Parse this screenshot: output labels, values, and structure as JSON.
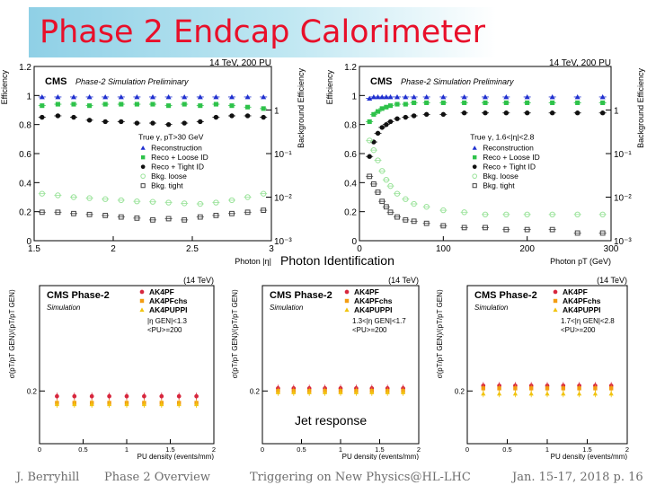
{
  "slide": {
    "title": "Phase 2 Endcap Calorimeter",
    "photon_caption": "Photon Identification",
    "jet_caption": "Jet response",
    "footer": {
      "author": "J. Berryhill",
      "talk": "Phase 2 Overview",
      "conference": "Triggering on New Physics@HL-LHC",
      "date_page": "Jan. 15-17, 2018 p. 16"
    }
  },
  "colors": {
    "title": "#e8102a",
    "reco": "#1f2fcf",
    "loose": "#2ec24a",
    "tight": "#111111",
    "bkg_loose": "#9be39b",
    "bkg_tight": "#444444",
    "ak4pf": "#d7263d",
    "ak4pfchs": "#f39c12",
    "ak4puppi": "#f1c40f"
  },
  "chart_data": [
    {
      "type": "scatter",
      "header_left": "CMS",
      "header_right": "Phase-2 Simulation Preliminary",
      "energy": "14 TeV, 200 PU",
      "xlabel": "Photon |η|",
      "ylabel": "Efficiency",
      "ylabel_right": "Background Efficiency",
      "xlim": [
        1.5,
        3.0
      ],
      "xticks": [
        "1.5",
        "2",
        "2.5",
        "3"
      ],
      "ylim": [
        0,
        1.2
      ],
      "yticks": [
        "0",
        "0.2",
        "0.4",
        "0.6",
        "0.8",
        "1",
        "1.2"
      ],
      "y2_log": true,
      "y2lim": [
        0.001,
        10
      ],
      "y2ticks": [
        "10⁻³",
        "10⁻²",
        "10⁻¹",
        "1"
      ],
      "selection": "True γ, pT>30 GeV",
      "legend_position": "center-right",
      "x": [
        1.55,
        1.65,
        1.75,
        1.85,
        1.95,
        2.05,
        2.15,
        2.25,
        2.35,
        2.45,
        2.55,
        2.65,
        2.75,
        2.85,
        2.95
      ],
      "series": [
        {
          "name": "Reconstruction",
          "axis": "left",
          "marker": "triangle",
          "color_key": "reco",
          "values": [
            0.99,
            0.99,
            0.99,
            0.99,
            0.99,
            0.99,
            0.99,
            0.99,
            0.99,
            0.99,
            0.99,
            0.99,
            0.99,
            0.99,
            0.99
          ]
        },
        {
          "name": "Reco + Loose ID",
          "axis": "left",
          "marker": "square",
          "color_key": "loose",
          "values": [
            0.93,
            0.94,
            0.94,
            0.93,
            0.94,
            0.94,
            0.94,
            0.94,
            0.93,
            0.94,
            0.93,
            0.94,
            0.93,
            0.92,
            0.91
          ]
        },
        {
          "name": "Reco + Tight ID",
          "axis": "left",
          "marker": "circle",
          "color_key": "tight",
          "values": [
            0.85,
            0.86,
            0.85,
            0.83,
            0.82,
            0.82,
            0.81,
            0.81,
            0.8,
            0.81,
            0.82,
            0.85,
            0.86,
            0.86,
            0.85
          ]
        },
        {
          "name": "Bkg. loose",
          "axis": "right",
          "marker": "open-circle",
          "color_key": "bkg_loose",
          "values": [
            0.012,
            0.011,
            0.01,
            0.0095,
            0.009,
            0.0085,
            0.008,
            0.0078,
            0.0075,
            0.0072,
            0.007,
            0.0075,
            0.0085,
            0.01,
            0.012
          ]
        },
        {
          "name": "Bkg. tight",
          "axis": "right",
          "marker": "open-square",
          "color_key": "bkg_tight",
          "values": [
            0.0045,
            0.0045,
            0.0042,
            0.004,
            0.0038,
            0.0035,
            0.0033,
            0.003,
            0.0032,
            0.003,
            0.0035,
            0.0038,
            0.0042,
            0.0045,
            0.005
          ]
        }
      ]
    },
    {
      "type": "scatter",
      "header_left": "CMS",
      "header_right": "Phase-2 Simulation Preliminary",
      "energy": "14 TeV, 200 PU",
      "xlabel": "Photon pT (GeV)",
      "ylabel": "Efficiency",
      "ylabel_right": "Background Efficiency",
      "xlim": [
        0,
        300
      ],
      "xticks": [
        "0",
        "100",
        "200",
        "300"
      ],
      "ylim": [
        0,
        1.2
      ],
      "yticks": [
        "0",
        "0.2",
        "0.4",
        "0.6",
        "0.8",
        "1",
        "1.2"
      ],
      "y2_log": true,
      "y2lim": [
        0.001,
        10
      ],
      "y2ticks": [
        "10⁻³",
        "10⁻²",
        "10⁻¹",
        "1"
      ],
      "selection": "True γ, 1.6<|η|<2.8",
      "legend_position": "center-right",
      "x": [
        12,
        17,
        22,
        27,
        32,
        37,
        45,
        55,
        65,
        80,
        100,
        125,
        150,
        175,
        200,
        230,
        260,
        290
      ],
      "series": [
        {
          "name": "Reconstruction",
          "axis": "left",
          "marker": "triangle",
          "color_key": "reco",
          "values": [
            0.98,
            0.99,
            0.99,
            0.99,
            0.99,
            0.99,
            0.99,
            0.99,
            0.99,
            0.99,
            0.99,
            0.99,
            0.99,
            0.99,
            0.99,
            0.99,
            0.99,
            0.99
          ]
        },
        {
          "name": "Reco + Loose ID",
          "axis": "left",
          "marker": "square",
          "color_key": "loose",
          "values": [
            0.82,
            0.87,
            0.89,
            0.91,
            0.92,
            0.93,
            0.94,
            0.94,
            0.95,
            0.95,
            0.95,
            0.95,
            0.95,
            0.95,
            0.95,
            0.95,
            0.95,
            0.95
          ]
        },
        {
          "name": "Reco + Tight ID",
          "axis": "left",
          "marker": "circle",
          "color_key": "tight",
          "values": [
            0.58,
            0.68,
            0.74,
            0.78,
            0.8,
            0.82,
            0.84,
            0.85,
            0.86,
            0.87,
            0.87,
            0.88,
            0.88,
            0.88,
            0.88,
            0.88,
            0.88,
            0.88
          ]
        },
        {
          "name": "Bkg. loose",
          "axis": "right",
          "marker": "open-circle",
          "color_key": "bkg_loose",
          "values": [
            0.2,
            0.12,
            0.07,
            0.04,
            0.025,
            0.018,
            0.012,
            0.009,
            0.007,
            0.006,
            0.005,
            0.0045,
            0.004,
            0.004,
            0.004,
            0.004,
            0.004,
            0.004
          ]
        },
        {
          "name": "Bkg. tight",
          "axis": "right",
          "marker": "open-square",
          "color_key": "bkg_tight",
          "values": [
            0.03,
            0.02,
            0.013,
            0.008,
            0.006,
            0.0045,
            0.0035,
            0.003,
            0.0028,
            0.0025,
            0.0022,
            0.002,
            0.002,
            0.0018,
            0.0018,
            0.0018,
            0.0015,
            0.0015
          ]
        }
      ]
    },
    {
      "type": "scatter",
      "header_left": "CMS Phase-2",
      "subtitle": "Simulation",
      "energy": "(14 TeV)",
      "xlabel": "PU density (events/mm)",
      "ylabel": "σ(pT/pT GEN)/⟨pT/pT GEN⟩",
      "xlim": [
        0,
        2
      ],
      "xticks": [
        "0",
        "0.5",
        "1",
        "1.5",
        "2"
      ],
      "ylim": [
        0,
        0.6
      ],
      "yticks": [
        "0.2"
      ],
      "annotation": [
        "|η GEN|<1.3",
        "<PU>=200"
      ],
      "legend_position": "top-right",
      "x": [
        0.2,
        0.4,
        0.6,
        0.8,
        1.0,
        1.2,
        1.4,
        1.6,
        1.8
      ],
      "series": [
        {
          "name": "AK4PF",
          "marker": "circle",
          "color_key": "ak4pf",
          "values": [
            0.18,
            0.18,
            0.18,
            0.18,
            0.18,
            0.18,
            0.18,
            0.18,
            0.18
          ]
        },
        {
          "name": "AK4PFchs",
          "marker": "square",
          "color_key": "ak4pfchs",
          "values": [
            0.155,
            0.155,
            0.155,
            0.155,
            0.155,
            0.155,
            0.155,
            0.155,
            0.155
          ]
        },
        {
          "name": "AK4PUPPI",
          "marker": "triangle",
          "color_key": "ak4puppi",
          "values": [
            0.15,
            0.15,
            0.15,
            0.15,
            0.15,
            0.15,
            0.15,
            0.15,
            0.15
          ]
        }
      ]
    },
    {
      "type": "scatter",
      "header_left": "CMS Phase-2",
      "subtitle": "Simulation",
      "energy": "(14 TeV)",
      "xlabel": "PU density (events/mm)",
      "ylabel": "σ(pT/pT GEN)/⟨pT/pT GEN⟩",
      "xlim": [
        0,
        2
      ],
      "xticks": [
        "0",
        "0.5",
        "1",
        "1.5",
        "2"
      ],
      "ylim": [
        0,
        0.6
      ],
      "yticks": [
        "0.2"
      ],
      "annotation": [
        "1.3<|η GEN|<1.7",
        "<PU>=200"
      ],
      "legend_position": "top-right",
      "x": [
        0.2,
        0.4,
        0.6,
        0.8,
        1.0,
        1.2,
        1.4,
        1.6,
        1.8
      ],
      "series": [
        {
          "name": "AK4PF",
          "marker": "circle",
          "color_key": "ak4pf",
          "values": [
            0.21,
            0.21,
            0.21,
            0.21,
            0.21,
            0.21,
            0.21,
            0.21,
            0.21
          ]
        },
        {
          "name": "AK4PFchs",
          "marker": "square",
          "color_key": "ak4pfchs",
          "values": [
            0.2,
            0.2,
            0.2,
            0.2,
            0.2,
            0.2,
            0.2,
            0.2,
            0.2
          ]
        },
        {
          "name": "AK4PUPPI",
          "marker": "triangle",
          "color_key": "ak4puppi",
          "values": [
            0.195,
            0.195,
            0.195,
            0.195,
            0.195,
            0.195,
            0.195,
            0.195,
            0.195
          ]
        }
      ]
    },
    {
      "type": "scatter",
      "header_left": "CMS Phase-2",
      "subtitle": "Simulation",
      "energy": "(14 TeV)",
      "xlabel": "PU density (events/mm)",
      "ylabel": "σ(pT/pT GEN)/⟨pT/pT GEN⟩",
      "xlim": [
        0,
        2
      ],
      "xticks": [
        "0",
        "0.5",
        "1",
        "1.5",
        "2"
      ],
      "ylim": [
        0,
        0.6
      ],
      "yticks": [
        "0.2"
      ],
      "annotation": [
        "1.7<|η GEN|<2.8",
        "<PU>=200"
      ],
      "legend_position": "top-right",
      "x": [
        0.2,
        0.4,
        0.6,
        0.8,
        1.0,
        1.2,
        1.4,
        1.6,
        1.8
      ],
      "series": [
        {
          "name": "AK4PF",
          "marker": "circle",
          "color_key": "ak4pf",
          "values": [
            0.22,
            0.22,
            0.22,
            0.22,
            0.22,
            0.22,
            0.22,
            0.22,
            0.22
          ]
        },
        {
          "name": "AK4PFchs",
          "marker": "square",
          "color_key": "ak4pfchs",
          "values": [
            0.21,
            0.21,
            0.21,
            0.21,
            0.21,
            0.21,
            0.21,
            0.21,
            0.21
          ]
        },
        {
          "name": "AK4PUPPI",
          "marker": "triangle",
          "color_key": "ak4puppi",
          "values": [
            0.19,
            0.19,
            0.19,
            0.19,
            0.19,
            0.19,
            0.19,
            0.19,
            0.19
          ]
        }
      ]
    }
  ]
}
